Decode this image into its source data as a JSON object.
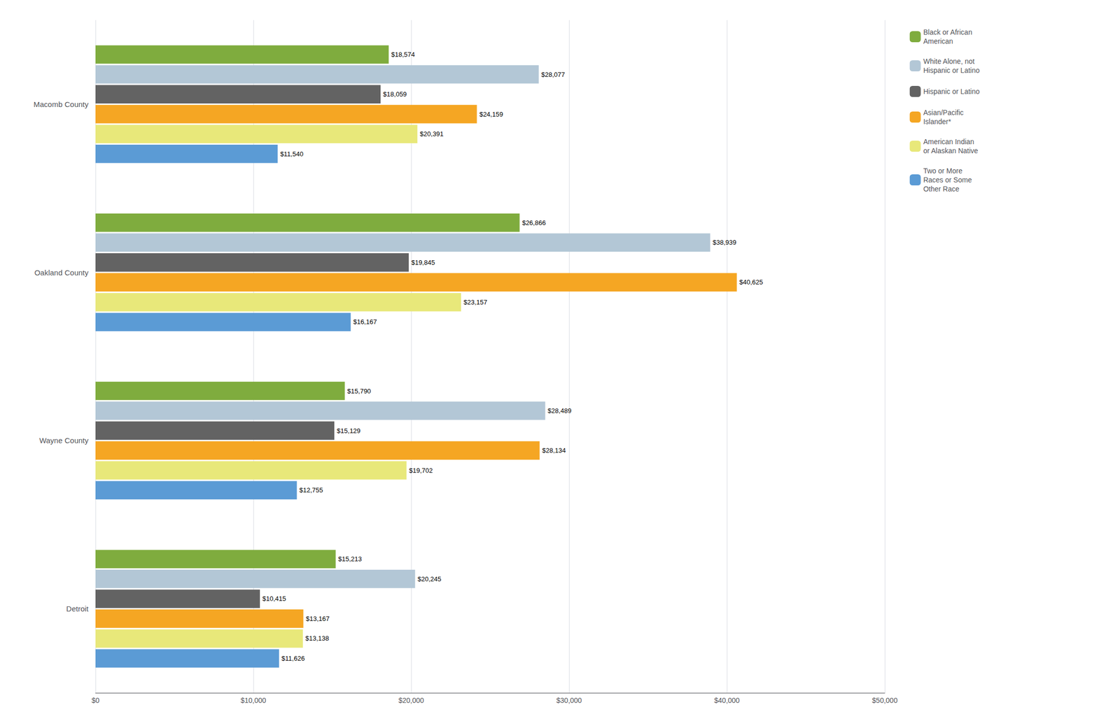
{
  "chart_data": {
    "type": "bar",
    "orientation": "horizontal",
    "categories": [
      "Macomb County",
      "Oakland County",
      "Wayne County",
      "Detroit"
    ],
    "series": [
      {
        "name": "Black or African\nAmerican",
        "color": "#7fac3e",
        "values": [
          18574,
          26866,
          15790,
          15213
        ],
        "value_labels": [
          "$18,574",
          "$26,866",
          "$15,790",
          "$15,213"
        ]
      },
      {
        "name": "White Alone, not\nHispanic or Latino",
        "color": "#b3c7d6",
        "values": [
          28077,
          38939,
          28489,
          20245
        ],
        "value_labels": [
          "$28,077",
          "$38,939",
          "$28,489",
          "$20,245"
        ]
      },
      {
        "name": "Hispanic or Latino",
        "color": "#636363",
        "values": [
          18059,
          19845,
          15129,
          10415
        ],
        "value_labels": [
          "$18,059",
          "$19,845",
          "$15,129",
          "$10,415"
        ]
      },
      {
        "name": "Asian/Pacific\nIslander*",
        "color": "#f5a623",
        "values": [
          24159,
          40625,
          28134,
          13167
        ],
        "value_labels": [
          "$24,159",
          "$40,625",
          "$28,134",
          "$13,167"
        ]
      },
      {
        "name": "American Indian\nor Alaskan Native",
        "color": "#e8e87a",
        "values": [
          20391,
          23157,
          19702,
          13138
        ],
        "value_labels": [
          "$20,391",
          "$23,157",
          "$19,702",
          "$13,138"
        ]
      },
      {
        "name": "Two or More\nRaces or Some\nOther Race",
        "color": "#5b9bd5",
        "values": [
          11540,
          16167,
          12755,
          11626
        ],
        "value_labels": [
          "$11,540",
          "$16,167",
          "$12,755",
          "$11,626"
        ]
      }
    ],
    "xlim": [
      0,
      50000
    ],
    "xticks": [
      {
        "value": 0,
        "label": "$0"
      },
      {
        "value": 10000,
        "label": "$10,000"
      },
      {
        "value": 20000,
        "label": "$20,000"
      },
      {
        "value": 30000,
        "label": "$30,000"
      },
      {
        "value": 40000,
        "label": "$40,000"
      },
      {
        "value": 50000,
        "label": "$50,000"
      }
    ],
    "grid": true,
    "legend": "right",
    "data_labels": true
  }
}
